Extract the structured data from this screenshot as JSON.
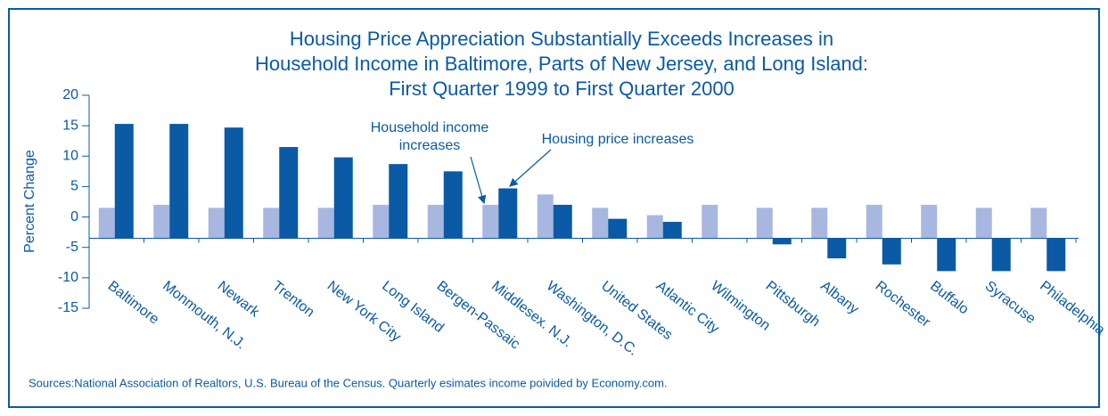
{
  "chart_data": {
    "type": "bar",
    "title": [
      "Housing Price Appreciation Substantially Exceeds Increases in",
      "Household Income in Baltimore, Parts of New Jersey, and Long Island:",
      "First Quarter 1999 to First Quarter 2000"
    ],
    "ylabel": "Percent Change",
    "categories": [
      "Baltimore",
      "Monmouth, N.J.",
      "Newark",
      "Trenton",
      "New York City",
      "Long Island",
      "Bergen-Passaic",
      "Middlesex. N.J.",
      "Washington, D.C.",
      "United States",
      "Atlantic City",
      "Wilmington",
      "Pittsburgh",
      "Albany",
      "Rochester",
      "Buffalo",
      "Syracuse",
      "Philadelphia"
    ],
    "series": [
      {
        "name": "Household income increases",
        "color": "#a7b7e0",
        "values": [
          1.5,
          2,
          1.5,
          1.5,
          1.5,
          2,
          2,
          2,
          3.7,
          1.5,
          0.3,
          2,
          1.5,
          1.5,
          2,
          2,
          1.5,
          1.5
        ]
      },
      {
        "name": "Housing price increases",
        "color": "#0a5aa5",
        "values": [
          15.3,
          15.3,
          14.7,
          11.5,
          9.8,
          8.7,
          7.5,
          4.7,
          2,
          -0.3,
          -0.8,
          -3.5,
          -4.5,
          -6.8,
          -7.8,
          -8.9,
          -8.9,
          -8.9
        ]
      }
    ],
    "ylim": [
      -15,
      20
    ],
    "yticks": [
      -15,
      -10,
      -5,
      0,
      5,
      10,
      15,
      20
    ],
    "xaxis_crossing": -3.5,
    "annotations": [
      [
        "Household income",
        "increases"
      ],
      [
        "Housing price increases"
      ]
    ],
    "source": "Sources:National Association of Realtors, U.S. Bureau of the Census. Quarterly esimates income poivided by Economy.com."
  }
}
